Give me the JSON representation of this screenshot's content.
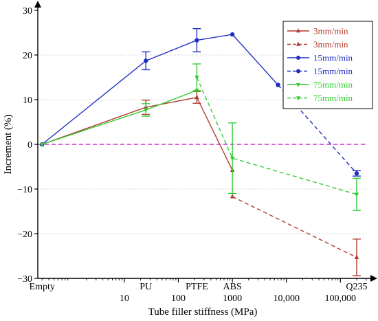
{
  "chart_data": {
    "type": "line",
    "title": "",
    "xlabel": "Tube filler stiffness (MPa)",
    "ylabel": "Increment (%)",
    "x_scale": "log",
    "xlim": [
      0.25,
      320000
    ],
    "ylim": [
      -30,
      30
    ],
    "x_major_ticks": [
      10,
      100,
      1000,
      10000,
      100000
    ],
    "x_major_tick_labels": [
      "10",
      "100",
      "1000",
      "10,000",
      "100,000"
    ],
    "y_ticks": [
      -30,
      -20,
      -10,
      0,
      10,
      20,
      30
    ],
    "y_tick_labels": [
      "−30",
      "−20",
      "−10",
      "0",
      "10",
      "20",
      "30"
    ],
    "materials": [
      {
        "label": "Empty",
        "stiffness": 0.3
      },
      {
        "label": "PU",
        "stiffness": 25
      },
      {
        "label": "PTFE",
        "stiffness": 220
      },
      {
        "label": "ABS",
        "stiffness": 1000
      },
      {
        "label": "Q235",
        "stiffness": 200000
      }
    ],
    "zero_line": {
      "y": 0,
      "color": "#cc33cc"
    },
    "grid": "horizontal dotted",
    "legend_position": "top-right",
    "series": [
      {
        "name": "3mm/min",
        "color": "#b03a2e",
        "style": "solid",
        "marker": "triangle-up",
        "x": [
          0.3,
          25,
          220,
          1000
        ],
        "y": [
          0,
          8.3,
          10.5,
          -5.8
        ],
        "err": [
          0,
          1.6,
          1.3,
          null
        ]
      },
      {
        "name": "3mm/min",
        "color": "#b03a2e",
        "style": "dashed",
        "marker": "triangle-up",
        "x": [
          1000,
          200000
        ],
        "y": [
          -11.7,
          -25.3
        ],
        "err": [
          null,
          4.1
        ]
      },
      {
        "name": "15mm/min",
        "color": "#1f2fc0",
        "style": "solid",
        "marker": "circle",
        "x": [
          0.3,
          25,
          220,
          1000,
          7000
        ],
        "y": [
          0,
          18.7,
          23.3,
          24.6,
          13.3
        ],
        "err": [
          0,
          2.0,
          2.6,
          null,
          null
        ]
      },
      {
        "name": "15mm/min",
        "color": "#1f2fc0",
        "style": "dashed",
        "marker": "circle",
        "x": [
          7000,
          200000
        ],
        "y": [
          13.3,
          -6.5
        ],
        "err": [
          null,
          0.6
        ]
      },
      {
        "name": "75mm/min",
        "color": "#33cc33",
        "style": "solid",
        "marker": "triangle-down",
        "x": [
          0.3,
          25,
          220
        ],
        "y": [
          0,
          7.7,
          12.1
        ],
        "err": [
          0,
          1.4,
          null
        ]
      },
      {
        "name": "75mm/min",
        "color": "#33cc33",
        "style": "dashed",
        "marker": "triangle-down",
        "x": [
          220,
          1000,
          200000
        ],
        "y": [
          15.0,
          -3.1,
          -11.2
        ],
        "err": [
          3.0,
          7.9,
          3.6
        ]
      }
    ]
  }
}
